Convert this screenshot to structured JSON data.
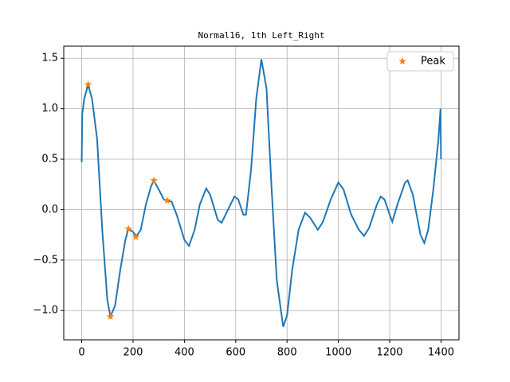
{
  "chart_data": {
    "type": "line",
    "title": "Normal16, 1th Left_Right",
    "x": [
      0,
      2,
      10,
      25,
      40,
      60,
      80,
      100,
      112,
      130,
      150,
      170,
      182,
      200,
      211,
      230,
      250,
      270,
      281,
      300,
      320,
      333,
      350,
      370,
      400,
      418,
      440,
      460,
      485,
      500,
      530,
      545,
      570,
      595,
      610,
      630,
      640,
      660,
      680,
      700,
      720,
      740,
      760,
      785,
      800,
      820,
      845,
      870,
      890,
      920,
      940,
      970,
      1000,
      1020,
      1050,
      1080,
      1100,
      1120,
      1150,
      1165,
      1180,
      1200,
      1210,
      1230,
      1260,
      1270,
      1290,
      1320,
      1335,
      1350,
      1370,
      1390,
      1398,
      1400
    ],
    "series": [
      {
        "name": null,
        "color": "#1f77b4",
        "values": [
          0.47,
          0.95,
          1.1,
          1.24,
          1.1,
          0.7,
          -0.2,
          -0.9,
          -1.06,
          -0.95,
          -0.6,
          -0.3,
          -0.19,
          -0.22,
          -0.27,
          -0.2,
          0.05,
          0.23,
          0.29,
          0.2,
          0.1,
          0.09,
          0.08,
          -0.05,
          -0.3,
          -0.36,
          -0.2,
          0.05,
          0.21,
          0.15,
          -0.1,
          -0.13,
          0.0,
          0.13,
          0.1,
          -0.05,
          -0.05,
          0.4,
          1.1,
          1.49,
          1.2,
          0.2,
          -0.7,
          -1.16,
          -1.05,
          -0.6,
          -0.2,
          -0.03,
          -0.08,
          -0.2,
          -0.12,
          0.1,
          0.27,
          0.2,
          -0.05,
          -0.2,
          -0.26,
          -0.18,
          0.05,
          0.13,
          0.1,
          -0.05,
          -0.12,
          0.05,
          0.27,
          0.29,
          0.15,
          -0.25,
          -0.33,
          -0.2,
          0.2,
          0.7,
          1.0,
          0.5
        ]
      },
      {
        "name": "Peak",
        "color": "#ff7f0e",
        "marker": "star",
        "x": [
          25,
          112,
          182,
          211,
          281,
          333
        ],
        "values": [
          1.24,
          -1.06,
          -0.19,
          -0.27,
          0.29,
          0.09
        ]
      }
    ],
    "xlim": [
      -70,
      1470
    ],
    "ylim": [
      -1.29,
      1.62
    ],
    "xticks": [
      0,
      200,
      400,
      600,
      800,
      1000,
      1200,
      1400
    ],
    "yticks": [
      {
        "value": -1.0,
        "label": "−1.0"
      },
      {
        "value": -0.5,
        "label": "−0.5"
      },
      {
        "value": 0.0,
        "label": "0.0"
      },
      0.5,
      {
        "value": 1.0,
        "label": "1.0"
      },
      1.5
    ],
    "grid": true,
    "legend": "upper right"
  }
}
